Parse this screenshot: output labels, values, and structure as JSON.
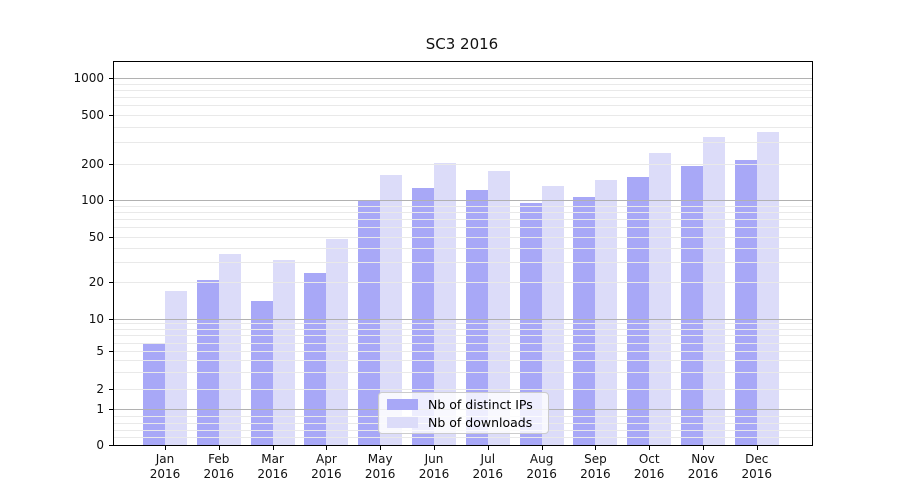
{
  "title": "SC3 2016",
  "colors": {
    "ips_bar": "#a8a8f7",
    "downloads_bar": "#dcdcf9",
    "grid_major": "#b1b1b1",
    "grid_minor": "#e9e9e9",
    "axis": "#000000",
    "legend_border": "#cccccc"
  },
  "legend": {
    "items": [
      {
        "label": "Nb of distinct IPs",
        "series": "ips"
      },
      {
        "label": "Nb of downloads",
        "series": "downloads"
      }
    ]
  },
  "chart_data": {
    "type": "bar",
    "title": "SC3 2016",
    "xlabel": "",
    "ylabel": "",
    "yscale": "symlog",
    "ylim": [
      0,
      1400
    ],
    "grid": true,
    "legend_position": "lower center",
    "y_tick_values": [
      0,
      1,
      2,
      5,
      10,
      20,
      50,
      100,
      200,
      500,
      1000
    ],
    "categories": [
      "Jan 2016",
      "Feb 2016",
      "Mar 2016",
      "Apr 2016",
      "May 2016",
      "Jun 2016",
      "Jul 2016",
      "Aug 2016",
      "Sep 2016",
      "Oct 2016",
      "Nov 2016",
      "Dec 2016"
    ],
    "series": [
      {
        "name": "Nb of distinct IPs",
        "values": [
          6,
          21,
          14,
          24,
          100,
          125,
          121,
          95,
          105,
          155,
          190,
          212
        ]
      },
      {
        "name": "Nb of downloads",
        "values": [
          17,
          35,
          31,
          48,
          160,
          203,
          172,
          130,
          146,
          245,
          330,
          360
        ]
      }
    ]
  }
}
